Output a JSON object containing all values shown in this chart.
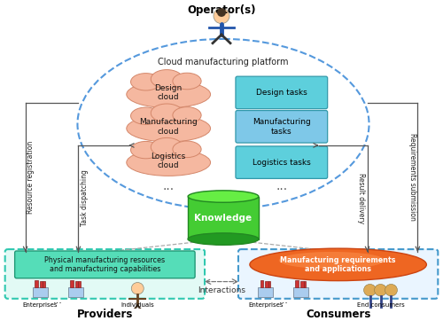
{
  "title": "Operator(s)",
  "bg_color": "#ffffff",
  "cloud_platform_label": "Cloud manufacturing platform",
  "cloud_labels": [
    "Design\ncloud",
    "Manufacturing\ncloud",
    "Logistics\ncloud"
  ],
  "task_labels": [
    "Design tasks",
    "Manufacturing\ntasks",
    "Logistics tasks"
  ],
  "task_colors": [
    "#5dcfdc",
    "#7ec8e8",
    "#5dcfdc"
  ],
  "cloud_color": "#f5b8a0",
  "knowledge_label": "Knowledge",
  "providers_inner_label": "Physical manufacturing resources\nand manufacturing capabilities",
  "consumers_inner_label": "Manufacturing requirements\nand applications",
  "providers_label": "Providers",
  "consumers_label": "Consumers",
  "interactions_label": "Interactions",
  "label_resource_reg": "Resource registration",
  "label_task_dispatch": "Task dispatching",
  "label_result_delivery": "Result delivery",
  "label_req_submission": "Requirements submission",
  "providers_entities": [
    "Enterprises",
    "...",
    "Individuals"
  ],
  "consumers_entities": [
    "Enterprises",
    "...",
    "End consumers"
  ]
}
